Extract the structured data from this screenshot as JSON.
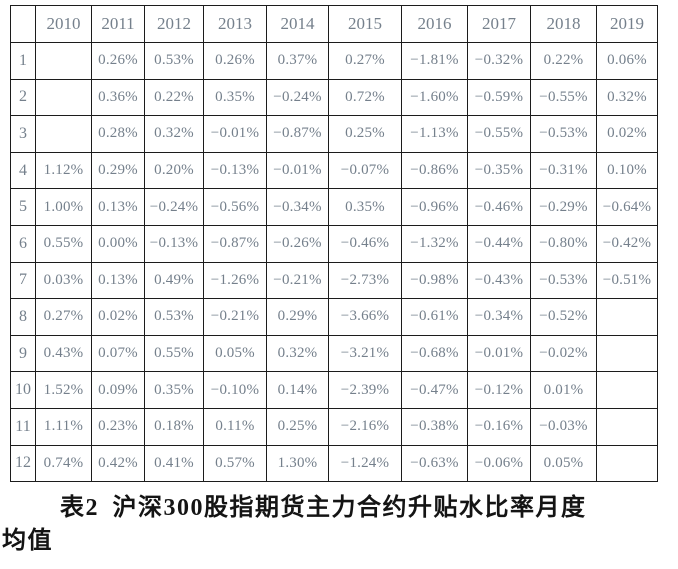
{
  "colors": {
    "cell_text": "#75808c",
    "border": "#1c1c1c",
    "caption_text": "#141414",
    "background": "#ffffff"
  },
  "table": {
    "corner_label": "",
    "year_headers": [
      "2010",
      "2011",
      "2012",
      "2013",
      "2014",
      "2015",
      "2016",
      "2017",
      "2018",
      "2019"
    ],
    "rows": [
      {
        "month": "1",
        "values": [
          "",
          "0.26%",
          "0.53%",
          "0.26%",
          "0.37%",
          "0.27%",
          "−1.81%",
          "−0.32%",
          "0.22%",
          "0.06%"
        ]
      },
      {
        "month": "2",
        "values": [
          "",
          "0.36%",
          "0.22%",
          "0.35%",
          "−0.24%",
          "0.72%",
          "−1.60%",
          "−0.59%",
          "−0.55%",
          "0.32%"
        ]
      },
      {
        "month": "3",
        "values": [
          "",
          "0.28%",
          "0.32%",
          "−0.01%",
          "−0.87%",
          "0.25%",
          "−1.13%",
          "−0.55%",
          "−0.53%",
          "0.02%"
        ]
      },
      {
        "month": "4",
        "values": [
          "1.12%",
          "0.29%",
          "0.20%",
          "−0.13%",
          "−0.01%",
          "−0.07%",
          "−0.86%",
          "−0.35%",
          "−0.31%",
          "0.10%"
        ]
      },
      {
        "month": "5",
        "values": [
          "1.00%",
          "0.13%",
          "−0.24%",
          "−0.56%",
          "−0.34%",
          "0.35%",
          "−0.96%",
          "−0.46%",
          "−0.29%",
          "−0.64%"
        ]
      },
      {
        "month": "6",
        "values": [
          "0.55%",
          "0.00%",
          "−0.13%",
          "−0.87%",
          "−0.26%",
          "−0.46%",
          "−1.32%",
          "−0.44%",
          "−0.80%",
          "−0.42%"
        ]
      },
      {
        "month": "7",
        "values": [
          "0.03%",
          "0.13%",
          "0.49%",
          "−1.26%",
          "−0.21%",
          "−2.73%",
          "−0.98%",
          "−0.43%",
          "−0.53%",
          "−0.51%"
        ]
      },
      {
        "month": "8",
        "values": [
          "0.27%",
          "0.02%",
          "0.53%",
          "−0.21%",
          "0.29%",
          "−3.66%",
          "−0.61%",
          "−0.34%",
          "−0.52%",
          ""
        ]
      },
      {
        "month": "9",
        "values": [
          "0.43%",
          "0.07%",
          "0.55%",
          "0.05%",
          "0.32%",
          "−3.21%",
          "−0.68%",
          "−0.01%",
          "−0.02%",
          ""
        ]
      },
      {
        "month": "10",
        "values": [
          "1.52%",
          "0.09%",
          "0.35%",
          "−0.10%",
          "0.14%",
          "−2.39%",
          "−0.47%",
          "−0.12%",
          "0.01%",
          ""
        ]
      },
      {
        "month": "11",
        "values": [
          "1.11%",
          "0.23%",
          "0.18%",
          "0.11%",
          "0.25%",
          "−2.16%",
          "−0.38%",
          "−0.16%",
          "−0.03%",
          ""
        ]
      },
      {
        "month": "12",
        "values": [
          "0.74%",
          "0.42%",
          "0.41%",
          "0.57%",
          "1.30%",
          "−1.24%",
          "−0.63%",
          "−0.06%",
          "0.05%",
          ""
        ]
      }
    ]
  },
  "caption": {
    "line1": "表2  沪深300股指期货主力合约升贴水比率月度",
    "line2": "均值"
  }
}
